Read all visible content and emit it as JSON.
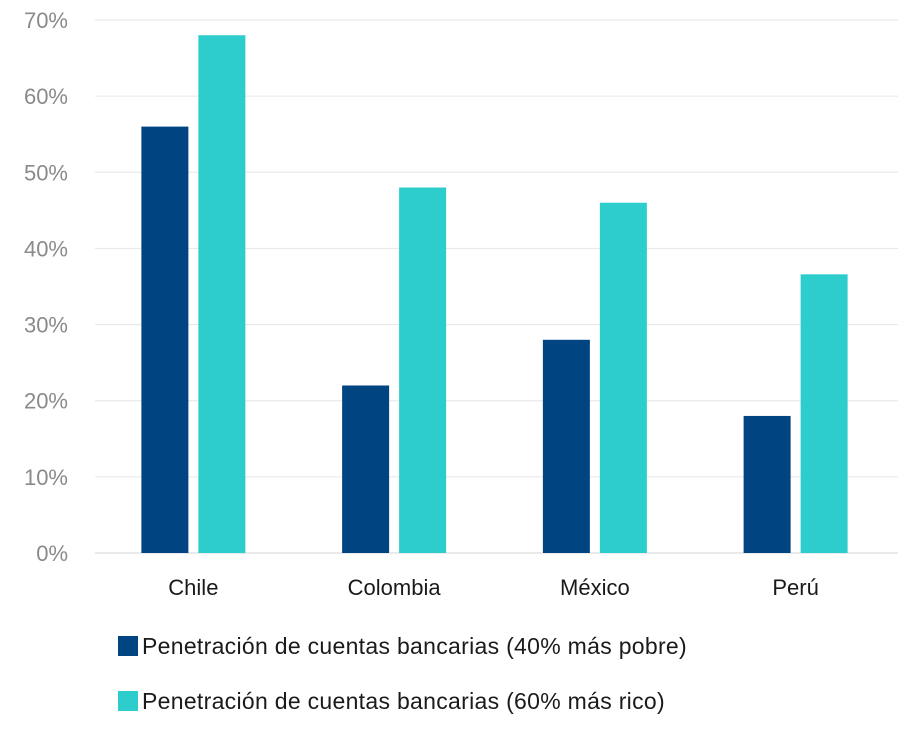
{
  "chart_data": {
    "type": "bar",
    "categories": [
      "Chile",
      "Colombia",
      "México",
      "Perú"
    ],
    "series": [
      {
        "name": "Penetración de cuentas bancarias (40% más pobre)",
        "values": [
          56,
          22,
          28,
          18
        ],
        "color": "#004481"
      },
      {
        "name": "Penetración de cuentas bancarias (60% más rico)",
        "values": [
          68,
          48,
          46,
          36.6
        ],
        "color": "#2dcccd"
      }
    ],
    "yticks": [
      "0%",
      "10%",
      "20%",
      "30%",
      "40%",
      "50%",
      "60%",
      "70%"
    ],
    "ylim": [
      0,
      70
    ],
    "grid": true,
    "legend": "bottom",
    "title": "",
    "xlabel": "",
    "ylabel": ""
  }
}
